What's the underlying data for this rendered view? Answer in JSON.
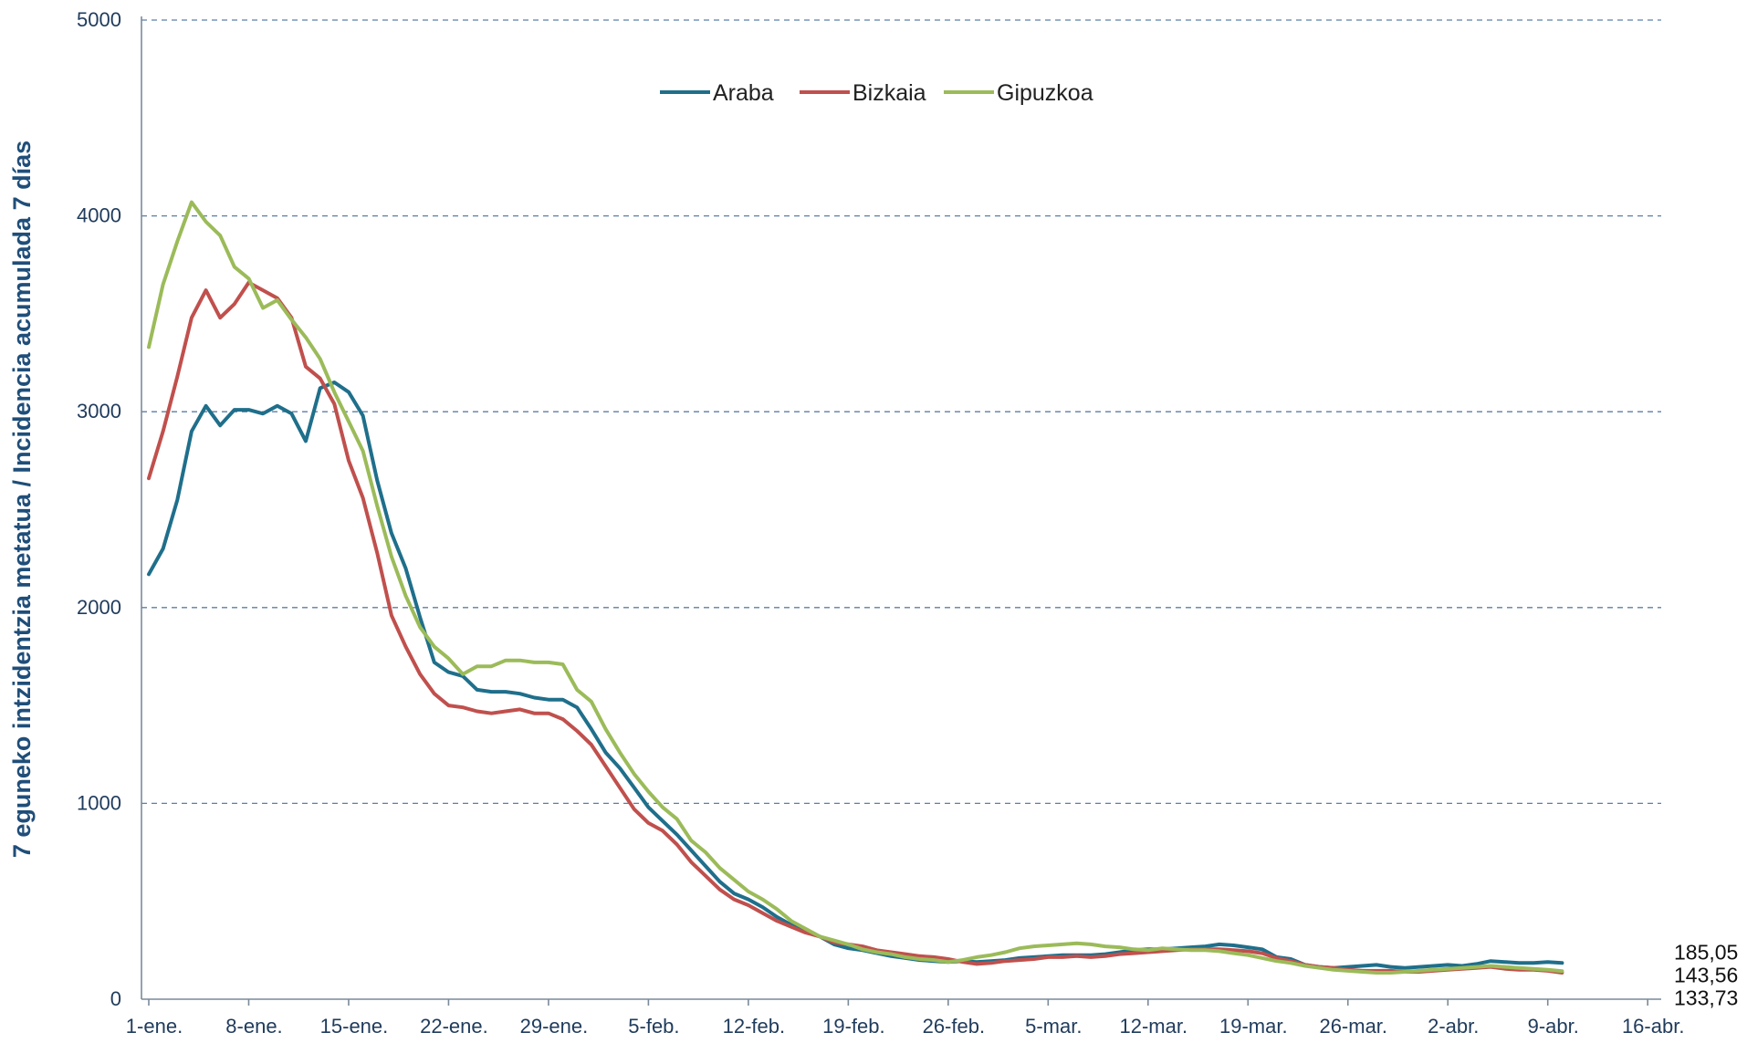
{
  "chart_data": {
    "type": "line",
    "title": "",
    "ylabel": "7 eguneko intzidentzia metatua / Incidencia acumulada 7 días",
    "xlabel": "",
    "ylim": [
      0,
      5000
    ],
    "y_ticks": [
      "0",
      "1000",
      "2000",
      "3000",
      "4000",
      "5000"
    ],
    "grid": "horizontal dashed",
    "legend_position": "top-center",
    "x_day_range": [
      0,
      108
    ],
    "x_ticks": [
      {
        "label": "1-ene.",
        "day": 0
      },
      {
        "label": "8-ene.",
        "day": 7
      },
      {
        "label": "15-ene.",
        "day": 14
      },
      {
        "label": "22-ene.",
        "day": 21
      },
      {
        "label": "29-ene.",
        "day": 28
      },
      {
        "label": "5-feb.",
        "day": 35
      },
      {
        "label": "12-feb.",
        "day": 42
      },
      {
        "label": "19-feb.",
        "day": 49
      },
      {
        "label": "26-feb.",
        "day": 56
      },
      {
        "label": "5-mar.",
        "day": 63
      },
      {
        "label": "12-mar.",
        "day": 70
      },
      {
        "label": "19-mar.",
        "day": 77
      },
      {
        "label": "26-mar.",
        "day": 84
      },
      {
        "label": "2-abr.",
        "day": 91
      },
      {
        "label": "9-abr.",
        "day": 98
      },
      {
        "label": "16-abr.",
        "day": 105
      }
    ],
    "series": [
      {
        "name": "Araba",
        "color": "#1f6f8b",
        "end_label": "185,05",
        "points": [
          [
            0,
            2170
          ],
          [
            1,
            2300
          ],
          [
            2,
            2550
          ],
          [
            3,
            2900
          ],
          [
            4,
            3030
          ],
          [
            5,
            2930
          ],
          [
            6,
            3010
          ],
          [
            7,
            3010
          ],
          [
            8,
            2990
          ],
          [
            9,
            3030
          ],
          [
            10,
            2990
          ],
          [
            11,
            2850
          ],
          [
            12,
            3120
          ],
          [
            13,
            3150
          ],
          [
            14,
            3100
          ],
          [
            15,
            2980
          ],
          [
            16,
            2650
          ],
          [
            17,
            2380
          ],
          [
            18,
            2200
          ],
          [
            19,
            1950
          ],
          [
            20,
            1720
          ],
          [
            21,
            1670
          ],
          [
            22,
            1650
          ],
          [
            23,
            1580
          ],
          [
            24,
            1570
          ],
          [
            25,
            1570
          ],
          [
            26,
            1560
          ],
          [
            27,
            1540
          ],
          [
            28,
            1530
          ],
          [
            29,
            1530
          ],
          [
            30,
            1490
          ],
          [
            31,
            1380
          ],
          [
            32,
            1260
          ],
          [
            33,
            1180
          ],
          [
            34,
            1080
          ],
          [
            35,
            980
          ],
          [
            36,
            910
          ],
          [
            37,
            840
          ],
          [
            38,
            760
          ],
          [
            39,
            680
          ],
          [
            40,
            600
          ],
          [
            41,
            540
          ],
          [
            42,
            510
          ],
          [
            43,
            470
          ],
          [
            44,
            420
          ],
          [
            45,
            380
          ],
          [
            46,
            350
          ],
          [
            47,
            320
          ],
          [
            48,
            280
          ],
          [
            49,
            260
          ],
          [
            50,
            250
          ],
          [
            51,
            235
          ],
          [
            52,
            220
          ],
          [
            53,
            210
          ],
          [
            54,
            200
          ],
          [
            55,
            195
          ],
          [
            56,
            190
          ],
          [
            57,
            195
          ],
          [
            58,
            190
          ],
          [
            59,
            195
          ],
          [
            60,
            200
          ],
          [
            61,
            210
          ],
          [
            62,
            215
          ],
          [
            63,
            220
          ],
          [
            64,
            225
          ],
          [
            65,
            225
          ],
          [
            66,
            225
          ],
          [
            67,
            230
          ],
          [
            68,
            240
          ],
          [
            69,
            250
          ],
          [
            70,
            255
          ],
          [
            71,
            255
          ],
          [
            72,
            260
          ],
          [
            73,
            265
          ],
          [
            74,
            270
          ],
          [
            75,
            280
          ],
          [
            76,
            275
          ],
          [
            77,
            265
          ],
          [
            78,
            255
          ],
          [
            79,
            215
          ],
          [
            80,
            205
          ],
          [
            81,
            175
          ],
          [
            82,
            165
          ],
          [
            83,
            160
          ],
          [
            84,
            165
          ],
          [
            85,
            170
          ],
          [
            86,
            175
          ],
          [
            87,
            165
          ],
          [
            88,
            160
          ],
          [
            89,
            165
          ],
          [
            90,
            170
          ],
          [
            91,
            175
          ],
          [
            92,
            170
          ],
          [
            93,
            180
          ],
          [
            94,
            195
          ],
          [
            95,
            190
          ],
          [
            96,
            185
          ],
          [
            97,
            185
          ],
          [
            98,
            190
          ],
          [
            99,
            185
          ]
        ]
      },
      {
        "name": "Bizkaia",
        "color": "#c0504d",
        "end_label": "133,73",
        "points": [
          [
            0,
            2660
          ],
          [
            1,
            2900
          ],
          [
            2,
            3180
          ],
          [
            3,
            3480
          ],
          [
            4,
            3620
          ],
          [
            5,
            3480
          ],
          [
            6,
            3550
          ],
          [
            7,
            3660
          ],
          [
            8,
            3620
          ],
          [
            9,
            3580
          ],
          [
            10,
            3480
          ],
          [
            11,
            3230
          ],
          [
            12,
            3170
          ],
          [
            13,
            3040
          ],
          [
            14,
            2750
          ],
          [
            15,
            2560
          ],
          [
            16,
            2280
          ],
          [
            17,
            1960
          ],
          [
            18,
            1800
          ],
          [
            19,
            1660
          ],
          [
            20,
            1560
          ],
          [
            21,
            1500
          ],
          [
            22,
            1490
          ],
          [
            23,
            1470
          ],
          [
            24,
            1460
          ],
          [
            25,
            1470
          ],
          [
            26,
            1480
          ],
          [
            27,
            1460
          ],
          [
            28,
            1460
          ],
          [
            29,
            1430
          ],
          [
            30,
            1370
          ],
          [
            31,
            1300
          ],
          [
            32,
            1190
          ],
          [
            33,
            1080
          ],
          [
            34,
            970
          ],
          [
            35,
            900
          ],
          [
            36,
            860
          ],
          [
            37,
            790
          ],
          [
            38,
            700
          ],
          [
            39,
            630
          ],
          [
            40,
            560
          ],
          [
            41,
            510
          ],
          [
            42,
            480
          ],
          [
            43,
            440
          ],
          [
            44,
            400
          ],
          [
            45,
            370
          ],
          [
            46,
            340
          ],
          [
            47,
            320
          ],
          [
            48,
            290
          ],
          [
            49,
            280
          ],
          [
            50,
            270
          ],
          [
            51,
            250
          ],
          [
            52,
            240
          ],
          [
            53,
            230
          ],
          [
            54,
            220
          ],
          [
            55,
            215
          ],
          [
            56,
            205
          ],
          [
            57,
            190
          ],
          [
            58,
            180
          ],
          [
            59,
            185
          ],
          [
            60,
            195
          ],
          [
            61,
            200
          ],
          [
            62,
            205
          ],
          [
            63,
            215
          ],
          [
            64,
            215
          ],
          [
            65,
            220
          ],
          [
            66,
            215
          ],
          [
            67,
            220
          ],
          [
            68,
            230
          ],
          [
            69,
            235
          ],
          [
            70,
            240
          ],
          [
            71,
            245
          ],
          [
            72,
            250
          ],
          [
            73,
            255
          ],
          [
            74,
            255
          ],
          [
            75,
            255
          ],
          [
            76,
            250
          ],
          [
            77,
            245
          ],
          [
            78,
            235
          ],
          [
            79,
            210
          ],
          [
            80,
            195
          ],
          [
            81,
            175
          ],
          [
            82,
            165
          ],
          [
            83,
            160
          ],
          [
            84,
            150
          ],
          [
            85,
            145
          ],
          [
            86,
            145
          ],
          [
            87,
            145
          ],
          [
            88,
            140
          ],
          [
            89,
            140
          ],
          [
            90,
            145
          ],
          [
            91,
            150
          ],
          [
            92,
            155
          ],
          [
            93,
            160
          ],
          [
            94,
            165
          ],
          [
            95,
            155
          ],
          [
            96,
            150
          ],
          [
            97,
            150
          ],
          [
            98,
            145
          ],
          [
            99,
            135
          ]
        ]
      },
      {
        "name": "Gipuzkoa",
        "color": "#9bbb59",
        "end_label": "143,56",
        "points": [
          [
            0,
            3330
          ],
          [
            1,
            3650
          ],
          [
            2,
            3870
          ],
          [
            3,
            4070
          ],
          [
            4,
            3970
          ],
          [
            5,
            3900
          ],
          [
            6,
            3740
          ],
          [
            7,
            3680
          ],
          [
            8,
            3530
          ],
          [
            9,
            3570
          ],
          [
            10,
            3470
          ],
          [
            11,
            3380
          ],
          [
            12,
            3270
          ],
          [
            13,
            3100
          ],
          [
            14,
            2950
          ],
          [
            15,
            2800
          ],
          [
            16,
            2520
          ],
          [
            17,
            2260
          ],
          [
            18,
            2060
          ],
          [
            19,
            1900
          ],
          [
            20,
            1800
          ],
          [
            21,
            1740
          ],
          [
            22,
            1660
          ],
          [
            23,
            1700
          ],
          [
            24,
            1700
          ],
          [
            25,
            1730
          ],
          [
            26,
            1730
          ],
          [
            27,
            1720
          ],
          [
            28,
            1720
          ],
          [
            29,
            1710
          ],
          [
            30,
            1580
          ],
          [
            31,
            1520
          ],
          [
            32,
            1380
          ],
          [
            33,
            1260
          ],
          [
            34,
            1150
          ],
          [
            35,
            1060
          ],
          [
            36,
            980
          ],
          [
            37,
            920
          ],
          [
            38,
            810
          ],
          [
            39,
            750
          ],
          [
            40,
            670
          ],
          [
            41,
            610
          ],
          [
            42,
            550
          ],
          [
            43,
            510
          ],
          [
            44,
            460
          ],
          [
            45,
            400
          ],
          [
            46,
            360
          ],
          [
            47,
            320
          ],
          [
            48,
            300
          ],
          [
            49,
            280
          ],
          [
            50,
            255
          ],
          [
            51,
            240
          ],
          [
            52,
            230
          ],
          [
            53,
            215
          ],
          [
            54,
            205
          ],
          [
            55,
            200
          ],
          [
            56,
            190
          ],
          [
            57,
            200
          ],
          [
            58,
            215
          ],
          [
            59,
            225
          ],
          [
            60,
            240
          ],
          [
            61,
            260
          ],
          [
            62,
            270
          ],
          [
            63,
            275
          ],
          [
            64,
            280
          ],
          [
            65,
            285
          ],
          [
            66,
            280
          ],
          [
            67,
            270
          ],
          [
            68,
            265
          ],
          [
            69,
            255
          ],
          [
            70,
            250
          ],
          [
            71,
            260
          ],
          [
            72,
            255
          ],
          [
            73,
            250
          ],
          [
            74,
            250
          ],
          [
            75,
            245
          ],
          [
            76,
            235
          ],
          [
            77,
            225
          ],
          [
            78,
            210
          ],
          [
            79,
            195
          ],
          [
            80,
            185
          ],
          [
            81,
            170
          ],
          [
            82,
            160
          ],
          [
            83,
            150
          ],
          [
            84,
            145
          ],
          [
            85,
            140
          ],
          [
            86,
            135
          ],
          [
            87,
            135
          ],
          [
            88,
            140
          ],
          [
            89,
            145
          ],
          [
            90,
            150
          ],
          [
            91,
            155
          ],
          [
            92,
            160
          ],
          [
            93,
            165
          ],
          [
            94,
            170
          ],
          [
            95,
            165
          ],
          [
            96,
            160
          ],
          [
            97,
            155
          ],
          [
            98,
            150
          ],
          [
            99,
            143
          ]
        ]
      }
    ]
  }
}
